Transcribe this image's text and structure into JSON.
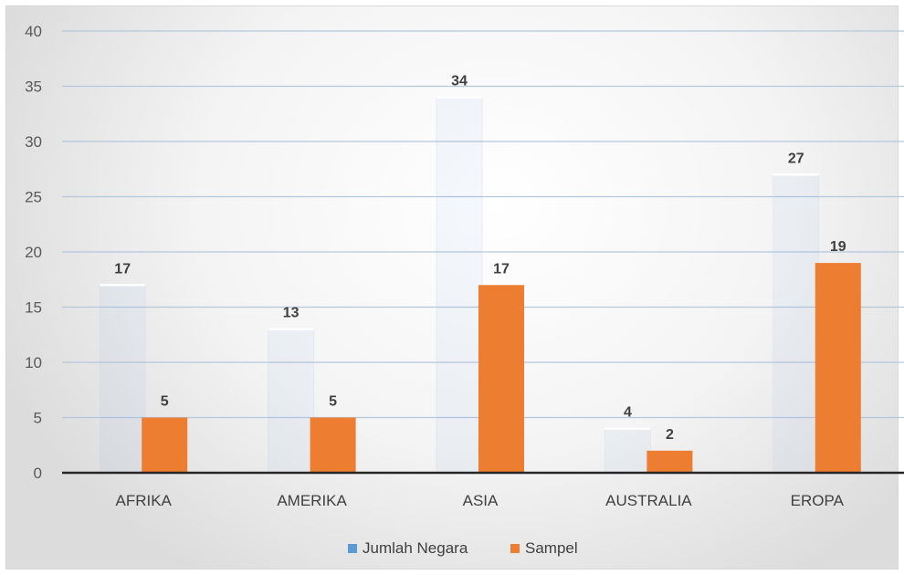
{
  "chart_data": {
    "type": "bar",
    "title": "",
    "xlabel": "",
    "ylabel": "",
    "categories": [
      "AFRIKA",
      "AMERIKA",
      "ASIA",
      "AUSTRALIA",
      "EROPA"
    ],
    "series": [
      {
        "name": "Jumlah Negara",
        "values": [
          17,
          13,
          34,
          4,
          27
        ],
        "color": "#5b9bd5"
      },
      {
        "name": "Sampel",
        "values": [
          5,
          5,
          17,
          2,
          19
        ],
        "color": "#ed7d31"
      }
    ],
    "ylim": [
      0,
      40
    ],
    "yticks": [
      "0",
      "5",
      "10",
      "15",
      "20",
      "25",
      "30",
      "35",
      "40"
    ],
    "grid": true,
    "legend": "bottom"
  }
}
